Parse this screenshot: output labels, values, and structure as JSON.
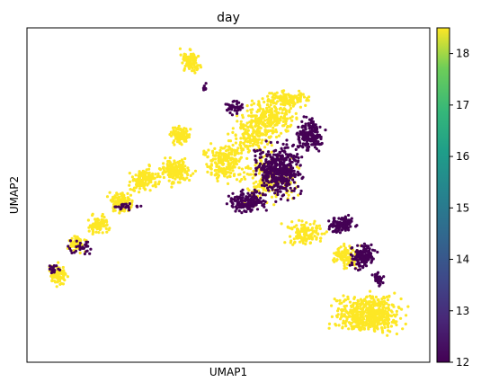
{
  "chart_data": {
    "type": "scatter",
    "title": "day",
    "xlabel": "UMAP1",
    "ylabel": "UMAP2",
    "xticks": false,
    "yticks": false,
    "grid": false,
    "color_by": "day",
    "colormap": "viridis",
    "colorbar": {
      "position": "right",
      "min": 12,
      "max": 18.5,
      "ticks": [
        12,
        13,
        14,
        15,
        16,
        17,
        18
      ],
      "tick_labels": [
        "12",
        "13",
        "14",
        "15",
        "16",
        "17",
        "18"
      ]
    },
    "colors": {
      "day_12": "#440154",
      "day_18_5": "#fde725"
    },
    "groups": [
      {
        "day": 12,
        "color_key": "day_12",
        "approx_cells": 1400
      },
      {
        "day": 18.5,
        "color_key": "day_18_5",
        "approx_cells": 3400
      }
    ]
  }
}
